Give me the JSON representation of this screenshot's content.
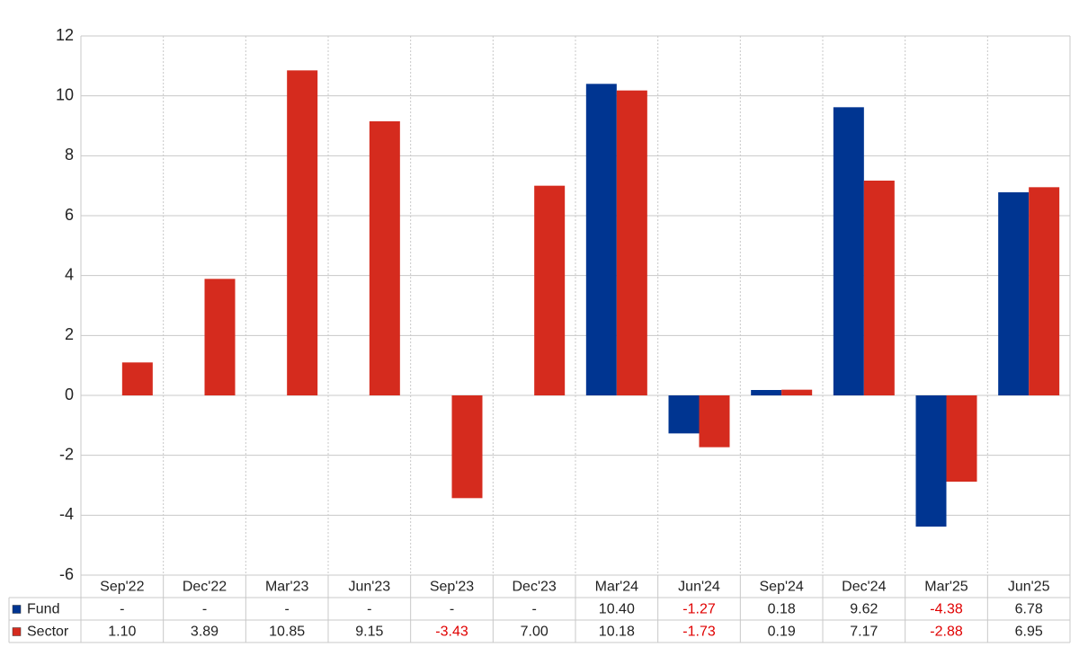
{
  "chart_data": {
    "type": "bar",
    "categories": [
      "Sep'22",
      "Dec'22",
      "Mar'23",
      "Jun'23",
      "Sep'23",
      "Dec'23",
      "Mar'24",
      "Jun'24",
      "Sep'24",
      "Dec'24",
      "Mar'25",
      "Jun'25"
    ],
    "series": [
      {
        "name": "Fund",
        "color": "#003591",
        "values": [
          null,
          null,
          null,
          null,
          null,
          null,
          10.4,
          -1.27,
          0.18,
          9.62,
          -4.38,
          6.78
        ],
        "value_labels": [
          "-",
          "-",
          "-",
          "-",
          "-",
          "-",
          "10.40",
          "-1.27",
          "0.18",
          "9.62",
          "-4.38",
          "6.78"
        ]
      },
      {
        "name": "Sector",
        "color": "#d52b1e",
        "values": [
          1.1,
          3.89,
          10.85,
          9.15,
          -3.43,
          7.0,
          10.18,
          -1.73,
          0.19,
          7.17,
          -2.88,
          6.95
        ],
        "value_labels": [
          "1.10",
          "3.89",
          "10.85",
          "9.15",
          "-3.43",
          "7.00",
          "10.18",
          "-1.73",
          "0.19",
          "7.17",
          "-2.88",
          "6.95"
        ]
      }
    ],
    "ylim": [
      -6,
      12
    ],
    "yticks": [
      -6,
      -4,
      -2,
      0,
      2,
      4,
      6,
      8,
      10,
      12
    ],
    "grid": true
  }
}
